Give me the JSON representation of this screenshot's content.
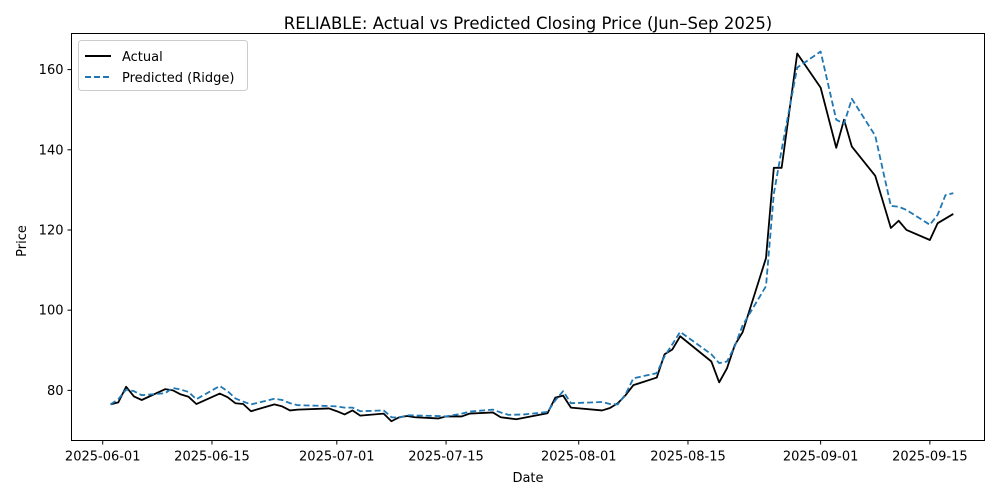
{
  "chart_data": {
    "type": "line",
    "title": "RELIABLE: Actual vs Predicted Closing Price (Jun–Sep 2025)",
    "xlabel": "Date",
    "ylabel": "Price",
    "xlim": [
      "2025-05-28",
      "2025-09-22"
    ],
    "ylim": [
      67.5,
      169
    ],
    "xticks": [
      "2025-06-01",
      "2025-06-15",
      "2025-07-01",
      "2025-07-15",
      "2025-08-01",
      "2025-08-15",
      "2025-09-01",
      "2025-09-15"
    ],
    "yticks": [
      80,
      100,
      120,
      140,
      160
    ],
    "grid": false,
    "legend": "upper-left",
    "series": [
      {
        "name": "Actual",
        "color": "#000000",
        "style": "solid",
        "points": [
          [
            "2025-06-02",
            76.5
          ],
          [
            "2025-06-03",
            77.0
          ],
          [
            "2025-06-04",
            80.9
          ],
          [
            "2025-06-05",
            78.5
          ],
          [
            "2025-06-06",
            77.6
          ],
          [
            "2025-06-09",
            80.3
          ],
          [
            "2025-06-10",
            80.0
          ],
          [
            "2025-06-11",
            79.0
          ],
          [
            "2025-06-12",
            78.4
          ],
          [
            "2025-06-13",
            76.6
          ],
          [
            "2025-06-16",
            79.2
          ],
          [
            "2025-06-17",
            78.3
          ],
          [
            "2025-06-18",
            76.8
          ],
          [
            "2025-06-19",
            76.6
          ],
          [
            "2025-06-20",
            74.8
          ],
          [
            "2025-06-23",
            76.5
          ],
          [
            "2025-06-24",
            76.0
          ],
          [
            "2025-06-25",
            75.0
          ],
          [
            "2025-06-26",
            75.2
          ],
          [
            "2025-06-30",
            75.5
          ],
          [
            "2025-07-01",
            74.8
          ],
          [
            "2025-07-02",
            74.0
          ],
          [
            "2025-07-03",
            75.0
          ],
          [
            "2025-07-04",
            73.7
          ],
          [
            "2025-07-07",
            74.2
          ],
          [
            "2025-07-08",
            72.3
          ],
          [
            "2025-07-09",
            73.3
          ],
          [
            "2025-07-10",
            73.6
          ],
          [
            "2025-07-11",
            73.3
          ],
          [
            "2025-07-14",
            73.0
          ],
          [
            "2025-07-15",
            73.5
          ],
          [
            "2025-07-17",
            73.5
          ],
          [
            "2025-07-18",
            74.2
          ],
          [
            "2025-07-21",
            74.5
          ],
          [
            "2025-07-22",
            73.3
          ],
          [
            "2025-07-24",
            72.8
          ],
          [
            "2025-07-28",
            74.3
          ],
          [
            "2025-07-29",
            78.2
          ],
          [
            "2025-07-30",
            78.7
          ],
          [
            "2025-07-31",
            75.7
          ],
          [
            "2025-08-04",
            75.0
          ],
          [
            "2025-08-05",
            75.6
          ],
          [
            "2025-08-06",
            76.8
          ],
          [
            "2025-08-07",
            78.8
          ],
          [
            "2025-08-08",
            81.3
          ],
          [
            "2025-08-11",
            83.2
          ],
          [
            "2025-08-12",
            89.0
          ],
          [
            "2025-08-13",
            90.2
          ],
          [
            "2025-08-14",
            93.5
          ],
          [
            "2025-08-18",
            87.2
          ],
          [
            "2025-08-19",
            82.0
          ],
          [
            "2025-08-20",
            85.5
          ],
          [
            "2025-08-21",
            91.3
          ],
          [
            "2025-08-22",
            94.5
          ],
          [
            "2025-08-25",
            113.0
          ],
          [
            "2025-08-26",
            135.5
          ],
          [
            "2025-08-27",
            135.5
          ],
          [
            "2025-08-29",
            164.0
          ],
          [
            "2025-09-01",
            155.5
          ],
          [
            "2025-09-03",
            140.5
          ],
          [
            "2025-09-04",
            147.5
          ],
          [
            "2025-09-05",
            140.8
          ],
          [
            "2025-09-08",
            133.5
          ],
          [
            "2025-09-10",
            120.5
          ],
          [
            "2025-09-11",
            122.3
          ],
          [
            "2025-09-12",
            120.0
          ],
          [
            "2025-09-15",
            117.5
          ],
          [
            "2025-09-16",
            121.7
          ],
          [
            "2025-09-18",
            124.0
          ]
        ]
      },
      {
        "name": "Predicted (Ridge)",
        "color": "#1f77b4",
        "style": "dashed",
        "points": [
          [
            "2025-06-02",
            76.5
          ],
          [
            "2025-06-03",
            77.8
          ],
          [
            "2025-06-04",
            80.2
          ],
          [
            "2025-06-05",
            79.8
          ],
          [
            "2025-06-06",
            78.8
          ],
          [
            "2025-06-09",
            79.3
          ],
          [
            "2025-06-10",
            80.6
          ],
          [
            "2025-06-11",
            80.2
          ],
          [
            "2025-06-12",
            79.6
          ],
          [
            "2025-06-13",
            77.8
          ],
          [
            "2025-06-16",
            81.1
          ],
          [
            "2025-06-17",
            79.8
          ],
          [
            "2025-06-18",
            78.0
          ],
          [
            "2025-06-19",
            77.2
          ],
          [
            "2025-06-20",
            76.5
          ],
          [
            "2025-06-23",
            77.9
          ],
          [
            "2025-06-24",
            77.6
          ],
          [
            "2025-06-25",
            76.8
          ],
          [
            "2025-06-26",
            76.3
          ],
          [
            "2025-06-30",
            76.1
          ],
          [
            "2025-07-01",
            76.0
          ],
          [
            "2025-07-02",
            75.7
          ],
          [
            "2025-07-03",
            75.7
          ],
          [
            "2025-07-04",
            74.8
          ],
          [
            "2025-07-07",
            75.0
          ],
          [
            "2025-07-08",
            73.3
          ],
          [
            "2025-07-09",
            73.2
          ],
          [
            "2025-07-10",
            73.8
          ],
          [
            "2025-07-14",
            73.6
          ],
          [
            "2025-07-15",
            73.5
          ],
          [
            "2025-07-17",
            74.2
          ],
          [
            "2025-07-18",
            74.7
          ],
          [
            "2025-07-21",
            75.2
          ],
          [
            "2025-07-22",
            74.5
          ],
          [
            "2025-07-23",
            73.9
          ],
          [
            "2025-07-25",
            74.0
          ],
          [
            "2025-07-28",
            74.6
          ],
          [
            "2025-07-29",
            77.5
          ],
          [
            "2025-07-30",
            79.8
          ],
          [
            "2025-07-31",
            76.8
          ],
          [
            "2025-08-04",
            77.1
          ],
          [
            "2025-08-05",
            76.6
          ],
          [
            "2025-08-06",
            76.5
          ],
          [
            "2025-08-07",
            79.0
          ],
          [
            "2025-08-08",
            83.0
          ],
          [
            "2025-08-11",
            84.3
          ],
          [
            "2025-08-12",
            88.5
          ],
          [
            "2025-08-13",
            91.5
          ],
          [
            "2025-08-14",
            94.6
          ],
          [
            "2025-08-18",
            89.0
          ],
          [
            "2025-08-19",
            86.8
          ],
          [
            "2025-08-20",
            87.2
          ],
          [
            "2025-08-21",
            91.0
          ],
          [
            "2025-08-22",
            96.2
          ],
          [
            "2025-08-25",
            106.0
          ],
          [
            "2025-08-26",
            129.0
          ],
          [
            "2025-08-27",
            140.0
          ],
          [
            "2025-08-29",
            160.5
          ],
          [
            "2025-09-01",
            164.5
          ],
          [
            "2025-09-03",
            147.5
          ],
          [
            "2025-09-04",
            146.5
          ],
          [
            "2025-09-05",
            152.7
          ],
          [
            "2025-09-08",
            143.5
          ],
          [
            "2025-09-10",
            126.0
          ],
          [
            "2025-09-11",
            125.8
          ],
          [
            "2025-09-12",
            125.0
          ],
          [
            "2025-09-15",
            121.3
          ],
          [
            "2025-09-16",
            123.8
          ],
          [
            "2025-09-17",
            128.7
          ],
          [
            "2025-09-18",
            129.2
          ]
        ]
      }
    ]
  }
}
